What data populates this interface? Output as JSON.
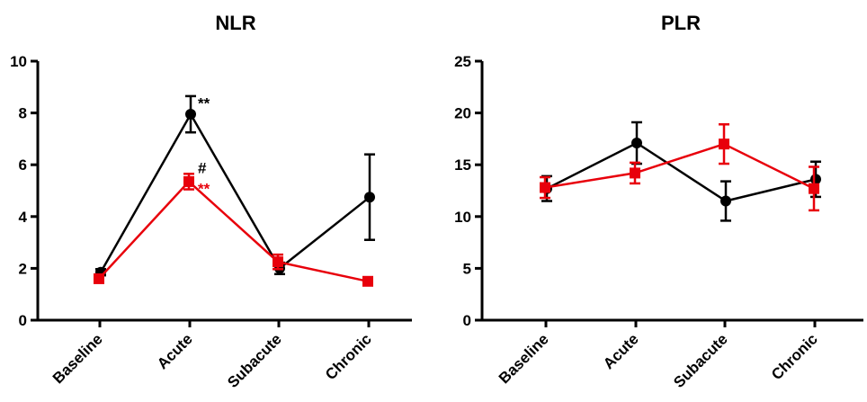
{
  "colors": {
    "black_series": "#000000",
    "red_series": "#e8000b"
  },
  "chart_data": [
    {
      "type": "line",
      "title": "NLR",
      "categories": [
        "Baseline",
        "Acute",
        "Subacute",
        "Chronic"
      ],
      "ylim": [
        0,
        10
      ],
      "yticks": [
        0,
        2,
        4,
        6,
        8,
        10
      ],
      "grid": false,
      "series": [
        {
          "color": "#000000",
          "marker": "circle",
          "values": [
            1.85,
            7.95,
            2.0,
            4.75
          ],
          "errors": [
            0.12,
            0.7,
            0.22,
            1.65
          ]
        },
        {
          "color": "#e8000b",
          "marker": "square",
          "values": [
            1.6,
            5.35,
            2.25,
            1.5
          ],
          "errors": [
            0.1,
            0.3,
            0.28,
            0.15
          ]
        }
      ],
      "annotations": [
        {
          "text": "**",
          "category": "Acute",
          "y": 8.6,
          "color": "#000000"
        },
        {
          "text": "#",
          "category": "Acute",
          "y": 6.1,
          "color": "#000000"
        },
        {
          "text": "**",
          "category": "Acute",
          "y": 5.3,
          "color": "#e8000b"
        }
      ]
    },
    {
      "type": "line",
      "title": "PLR",
      "categories": [
        "Baseline",
        "Acute",
        "Subacute",
        "Chronic"
      ],
      "ylim": [
        0,
        25
      ],
      "yticks": [
        0,
        5,
        10,
        15,
        20,
        25
      ],
      "grid": false,
      "series": [
        {
          "color": "#000000",
          "marker": "circle",
          "values": [
            12.7,
            17.1,
            11.5,
            13.6
          ],
          "errors": [
            1.2,
            2.0,
            1.9,
            1.7
          ]
        },
        {
          "color": "#e8000b",
          "marker": "square",
          "values": [
            12.8,
            14.2,
            17.0,
            12.7
          ],
          "errors": [
            1.0,
            1.0,
            1.9,
            2.1
          ]
        }
      ],
      "annotations": []
    }
  ]
}
